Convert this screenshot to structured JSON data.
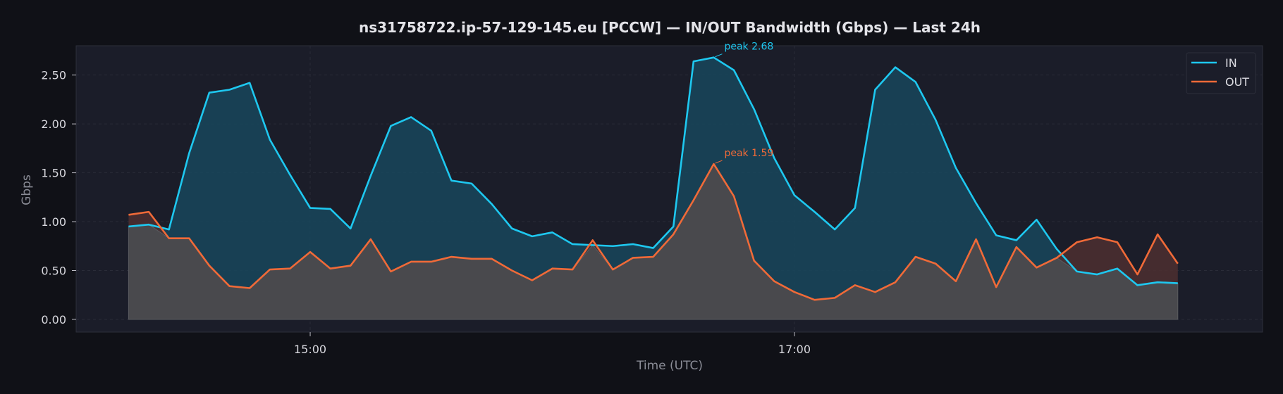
{
  "chart_data": {
    "type": "area",
    "title": "ns31758722.ip-57-129-145.eu [PCCW] — IN/OUT Bandwidth (Gbps) — Last 24h",
    "xlabel": "Time (UTC)",
    "ylabel": "Gbps",
    "x_ticks": [
      {
        "label": "15:00",
        "minutes": 900
      },
      {
        "label": "17:00",
        "minutes": 1020
      }
    ],
    "y_ticks": [
      "0.00",
      "0.50",
      "1.00",
      "1.50",
      "2.00",
      "2.50"
    ],
    "y_tick_values": [
      0,
      0.5,
      1.0,
      1.5,
      2.0,
      2.5
    ],
    "ylim": [
      -0.13,
      2.8
    ],
    "x_start_minutes": 855,
    "x_step_minutes": 5,
    "xlim_minutes": [
      842,
      1136
    ],
    "grid": true,
    "legend_position": "top-right",
    "series": [
      {
        "name": "IN",
        "color": "#1ec8f0",
        "fill": "#17465c",
        "values": [
          0.95,
          0.97,
          0.92,
          1.7,
          2.32,
          2.35,
          2.42,
          1.84,
          1.48,
          1.14,
          1.13,
          0.93,
          1.47,
          1.98,
          2.07,
          1.93,
          1.42,
          1.39,
          1.18,
          0.93,
          0.85,
          0.89,
          0.77,
          0.76,
          0.75,
          0.77,
          0.73,
          0.95,
          2.64,
          2.68,
          2.55,
          2.15,
          1.65,
          1.27,
          1.1,
          0.92,
          1.14,
          2.35,
          2.58,
          2.43,
          2.04,
          1.55,
          1.19,
          0.86,
          0.81,
          1.02,
          0.72,
          0.49,
          0.46,
          0.52,
          0.35,
          0.38,
          0.37
        ]
      },
      {
        "name": "OUT",
        "color": "#f06a38",
        "fill": "#4c2f30",
        "values": [
          1.07,
          1.1,
          0.83,
          0.83,
          0.55,
          0.34,
          0.32,
          0.51,
          0.52,
          0.69,
          0.52,
          0.55,
          0.82,
          0.49,
          0.59,
          0.59,
          0.64,
          0.62,
          0.62,
          0.5,
          0.4,
          0.52,
          0.51,
          0.81,
          0.51,
          0.63,
          0.64,
          0.87,
          1.22,
          1.59,
          1.26,
          0.6,
          0.39,
          0.28,
          0.2,
          0.22,
          0.35,
          0.28,
          0.38,
          0.64,
          0.57,
          0.39,
          0.82,
          0.33,
          0.74,
          0.53,
          0.63,
          0.79,
          0.84,
          0.79,
          0.46,
          0.87,
          0.57
        ]
      }
    ],
    "annotations": [
      {
        "series": "IN",
        "index": 29,
        "text": "peak 2.68"
      },
      {
        "series": "OUT",
        "index": 29,
        "text": "peak 1.59"
      }
    ]
  }
}
